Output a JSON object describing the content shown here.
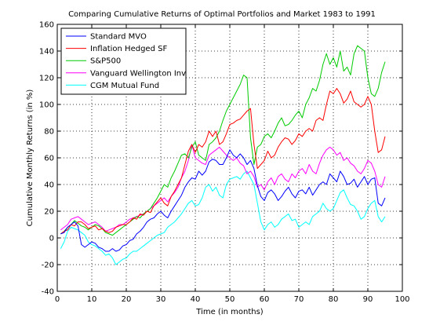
{
  "chart_data": {
    "type": "line",
    "title": "Comparing Cumulative Returns of Optimal Portfolios and Market 1983 to 1991",
    "xlabel": "Time (in months)",
    "ylabel": "Cumulative Monthly Returns (in %)",
    "xlim": [
      0,
      100
    ],
    "ylim": [
      -40,
      160
    ],
    "xticks": [
      0,
      10,
      20,
      30,
      40,
      50,
      60,
      70,
      80,
      90,
      100
    ],
    "yticks": [
      -40,
      -20,
      0,
      20,
      40,
      60,
      80,
      100,
      120,
      140,
      160
    ],
    "grid": true,
    "legend_position": "top-left",
    "series": [
      {
        "name": "Standard MVO",
        "color": "#0000ff",
        "x": [
          1,
          2,
          3,
          4,
          5,
          6,
          7,
          8,
          9,
          10,
          11,
          12,
          13,
          14,
          15,
          16,
          17,
          18,
          19,
          20,
          21,
          22,
          23,
          24,
          25,
          26,
          27,
          28,
          29,
          30,
          31,
          32,
          33,
          34,
          35,
          36,
          37,
          38,
          39,
          40,
          41,
          42,
          43,
          44,
          45,
          46,
          47,
          48,
          49,
          50,
          51,
          52,
          53,
          54,
          55,
          56,
          57,
          58,
          59,
          60,
          61,
          62,
          63,
          64,
          65,
          66,
          67,
          68,
          69,
          70,
          71,
          72,
          73,
          74,
          75,
          76,
          77,
          78,
          79,
          80,
          81,
          82,
          83,
          84,
          85,
          86,
          87,
          88,
          89,
          90,
          91,
          92,
          93,
          94,
          95
        ],
        "values": [
          3,
          4,
          8,
          10,
          12,
          9,
          -5,
          -7,
          -5,
          -3,
          -4,
          -7,
          -8,
          -10,
          -10,
          -8,
          -10,
          -9,
          -6,
          -5,
          -2,
          -1,
          3,
          5,
          8,
          12,
          14,
          15,
          18,
          20,
          17,
          15,
          20,
          24,
          28,
          32,
          38,
          42,
          45,
          44,
          50,
          47,
          50,
          57,
          59,
          58,
          55,
          55,
          60,
          66,
          62,
          60,
          63,
          60,
          55,
          58,
          52,
          39,
          31,
          28,
          34,
          36,
          33,
          28,
          31,
          35,
          38,
          33,
          30,
          35,
          36,
          33,
          38,
          32,
          36,
          40,
          42,
          40,
          48,
          45,
          42,
          50,
          46,
          40,
          41,
          44,
          38,
          42,
          46,
          40,
          44,
          45,
          26,
          24,
          30
        ]
      },
      {
        "name": "Inflation Hedged SF",
        "color": "#ff0000",
        "x": [
          1,
          2,
          3,
          4,
          5,
          6,
          7,
          8,
          9,
          10,
          11,
          12,
          13,
          14,
          15,
          16,
          17,
          18,
          19,
          20,
          21,
          22,
          23,
          24,
          25,
          26,
          27,
          28,
          29,
          30,
          31,
          32,
          33,
          34,
          35,
          36,
          37,
          38,
          39,
          40,
          41,
          42,
          43,
          44,
          45,
          46,
          47,
          48,
          49,
          50,
          51,
          52,
          53,
          54,
          55,
          56,
          57,
          58,
          59,
          60,
          61,
          62,
          63,
          64,
          65,
          66,
          67,
          68,
          69,
          70,
          71,
          72,
          73,
          74,
          75,
          76,
          77,
          78,
          79,
          80,
          81,
          82,
          83,
          84,
          85,
          86,
          87,
          88,
          89,
          90,
          91,
          92,
          93,
          94,
          95
        ],
        "values": [
          3,
          5,
          6,
          10,
          9,
          12,
          12,
          10,
          7,
          8,
          9,
          6,
          7,
          5,
          4,
          5,
          8,
          9,
          10,
          10,
          12,
          15,
          14,
          18,
          17,
          20,
          19,
          24,
          27,
          30,
          26,
          24,
          31,
          35,
          40,
          45,
          55,
          65,
          70,
          64,
          70,
          68,
          72,
          80,
          76,
          80,
          70,
          72,
          78,
          85,
          86,
          88,
          89,
          92,
          95,
          97,
          70,
          52,
          55,
          58,
          65,
          60,
          62,
          68,
          72,
          75,
          74,
          70,
          73,
          78,
          76,
          80,
          82,
          80,
          88,
          90,
          88,
          100,
          110,
          108,
          112,
          108,
          101,
          104,
          110,
          102,
          100,
          98,
          100,
          106,
          100,
          80,
          64,
          66,
          76
        ]
      },
      {
        "name": "S&P500",
        "color": "#00cc00",
        "x": [
          1,
          2,
          3,
          4,
          5,
          6,
          7,
          8,
          9,
          10,
          11,
          12,
          13,
          14,
          15,
          16,
          17,
          18,
          19,
          20,
          21,
          22,
          23,
          24,
          25,
          26,
          27,
          28,
          29,
          30,
          31,
          32,
          33,
          34,
          35,
          36,
          37,
          38,
          39,
          40,
          41,
          42,
          43,
          44,
          45,
          46,
          47,
          48,
          49,
          50,
          51,
          52,
          53,
          54,
          55,
          56,
          57,
          58,
          59,
          60,
          61,
          62,
          63,
          64,
          65,
          66,
          67,
          68,
          69,
          70,
          71,
          72,
          73,
          74,
          75,
          76,
          77,
          78,
          79,
          80,
          81,
          82,
          83,
          84,
          85,
          86,
          87,
          88,
          89,
          90,
          91,
          92,
          93,
          94,
          95
        ],
        "values": [
          3,
          5,
          8,
          10,
          13,
          11,
          9,
          8,
          6,
          8,
          10,
          9,
          7,
          4,
          3,
          2,
          4,
          6,
          8,
          10,
          12,
          14,
          16,
          15,
          18,
          20,
          22,
          26,
          30,
          35,
          40,
          38,
          45,
          50,
          56,
          62,
          63,
          60,
          68,
          72,
          62,
          60,
          58,
          70,
          72,
          75,
          80,
          88,
          95,
          100,
          105,
          110,
          115,
          122,
          120,
          75,
          55,
          68,
          70,
          76,
          78,
          75,
          80,
          86,
          90,
          84,
          85,
          88,
          92,
          95,
          90,
          100,
          105,
          112,
          110,
          118,
          130,
          138,
          130,
          135,
          128,
          140,
          125,
          128,
          122,
          138,
          144,
          142,
          140,
          120,
          108,
          106,
          112,
          124,
          132
        ]
      },
      {
        "name": "Vanguard Wellington Inv",
        "color": "#ff00ff",
        "x": [
          1,
          2,
          3,
          4,
          5,
          6,
          7,
          8,
          9,
          10,
          11,
          12,
          13,
          14,
          15,
          16,
          17,
          18,
          19,
          20,
          21,
          22,
          23,
          24,
          25,
          26,
          27,
          28,
          29,
          30,
          31,
          32,
          33,
          34,
          35,
          36,
          37,
          38,
          39,
          40,
          41,
          42,
          43,
          44,
          45,
          46,
          47,
          48,
          49,
          50,
          51,
          52,
          53,
          54,
          55,
          56,
          57,
          58,
          59,
          60,
          61,
          62,
          63,
          64,
          65,
          66,
          67,
          68,
          69,
          70,
          71,
          72,
          73,
          74,
          75,
          76,
          77,
          78,
          79,
          80,
          81,
          82,
          83,
          84,
          85,
          86,
          87,
          88,
          89,
          90,
          91,
          92,
          93,
          94,
          95
        ],
        "values": [
          6,
          8,
          10,
          14,
          15,
          16,
          14,
          12,
          10,
          11,
          12,
          10,
          8,
          5,
          6,
          7,
          8,
          10,
          10,
          12,
          14,
          15,
          16,
          17,
          18,
          20,
          22,
          24,
          26,
          28,
          30,
          27,
          31,
          34,
          38,
          45,
          50,
          58,
          70,
          60,
          58,
          56,
          55,
          62,
          64,
          66,
          68,
          65,
          62,
          60,
          58,
          60,
          56,
          54,
          48,
          50,
          46,
          38,
          40,
          36,
          42,
          45,
          40,
          46,
          48,
          44,
          42,
          48,
          45,
          50,
          52,
          48,
          55,
          50,
          48,
          56,
          62,
          66,
          68,
          66,
          62,
          64,
          58,
          60,
          56,
          54,
          50,
          48,
          52,
          58,
          56,
          50,
          40,
          38,
          46
        ]
      },
      {
        "name": "CGM Mutual Fund",
        "color": "#00ffff",
        "x": [
          1,
          2,
          3,
          4,
          5,
          6,
          7,
          8,
          9,
          10,
          11,
          12,
          13,
          14,
          15,
          16,
          17,
          18,
          19,
          20,
          21,
          22,
          23,
          24,
          25,
          26,
          27,
          28,
          29,
          30,
          31,
          32,
          33,
          34,
          35,
          36,
          37,
          38,
          39,
          40,
          41,
          42,
          43,
          44,
          45,
          46,
          47,
          48,
          49,
          50,
          51,
          52,
          53,
          54,
          55,
          56,
          57,
          58,
          59,
          60,
          61,
          62,
          63,
          64,
          65,
          66,
          67,
          68,
          69,
          70,
          71,
          72,
          73,
          74,
          75,
          76,
          77,
          78,
          79,
          80,
          81,
          82,
          83,
          84,
          85,
          86,
          87,
          88,
          89,
          90,
          91,
          92,
          93,
          94,
          95
        ],
        "values": [
          -8,
          -3,
          5,
          8,
          7,
          6,
          4,
          2,
          -3,
          -5,
          -6,
          -8,
          -10,
          -13,
          -12,
          -15,
          -20,
          -18,
          -16,
          -15,
          -12,
          -10,
          -10,
          -8,
          -6,
          -4,
          -2,
          0,
          2,
          3,
          4,
          8,
          10,
          12,
          15,
          18,
          22,
          26,
          28,
          24,
          25,
          30,
          38,
          40,
          35,
          38,
          32,
          30,
          40,
          44,
          45,
          46,
          44,
          48,
          50,
          45,
          40,
          26,
          12,
          6,
          10,
          12,
          8,
          10,
          14,
          16,
          18,
          13,
          14,
          8,
          10,
          12,
          10,
          16,
          18,
          20,
          26,
          22,
          20,
          22,
          28,
          34,
          36,
          30,
          25,
          24,
          20,
          14,
          16,
          22,
          26,
          28,
          16,
          12,
          16
        ]
      }
    ]
  }
}
